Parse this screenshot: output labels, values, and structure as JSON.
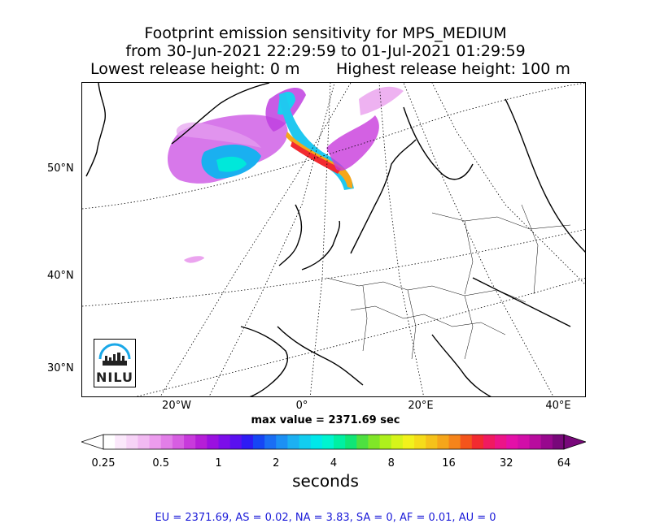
{
  "title": {
    "line1": "Footprint emission sensitivity for MPS_MEDIUM",
    "line2": "from 30-Jun-2021 22:29:59 to 01-Jul-2021 01:29:59",
    "lowest_release": "Lowest release height: 0 m",
    "highest_release": "Highest release height: 100 m"
  },
  "map": {
    "lat_labels": [
      "50°N",
      "40°N",
      "30°N"
    ],
    "lon_labels": [
      "20°W",
      "0°",
      "20°E",
      "40°E"
    ],
    "logo_text": "NILU"
  },
  "max_value_text": "max value = 2371.69 sec",
  "colorbar": {
    "tick_labels": [
      "0.25",
      "0.5",
      "1",
      "2",
      "4",
      "8",
      "16",
      "32",
      "64"
    ],
    "unit": "seconds",
    "colors": [
      "#ffffff",
      "#fbe8fb",
      "#f7d3f7",
      "#f2baf2",
      "#ec9cee",
      "#e27ee8",
      "#d75ee2",
      "#c83adc",
      "#b51ed8",
      "#9a10e0",
      "#7c0eea",
      "#5a10f0",
      "#2e1cf4",
      "#1646f4",
      "#1a6ef4",
      "#1c90f4",
      "#1cb0f2",
      "#12cdef",
      "#00e8ea",
      "#00f4cf",
      "#00f0a2",
      "#10e676",
      "#4ee040",
      "#80e628",
      "#aef01c",
      "#d6f41a",
      "#f2f21c",
      "#f6dc1a",
      "#f6c21a",
      "#f6a61a",
      "#f6841a",
      "#f4541c",
      "#f22a30",
      "#f01a60",
      "#ec1488",
      "#e410a8",
      "#d20ea8",
      "#b80c9e",
      "#98088e",
      "#78087a"
    ]
  },
  "stats": {
    "text": "EU = 2371.69,  AS = 0.02,  NA = 3.83,  SA = 0,  AF = 0.01,  AU = 0"
  }
}
